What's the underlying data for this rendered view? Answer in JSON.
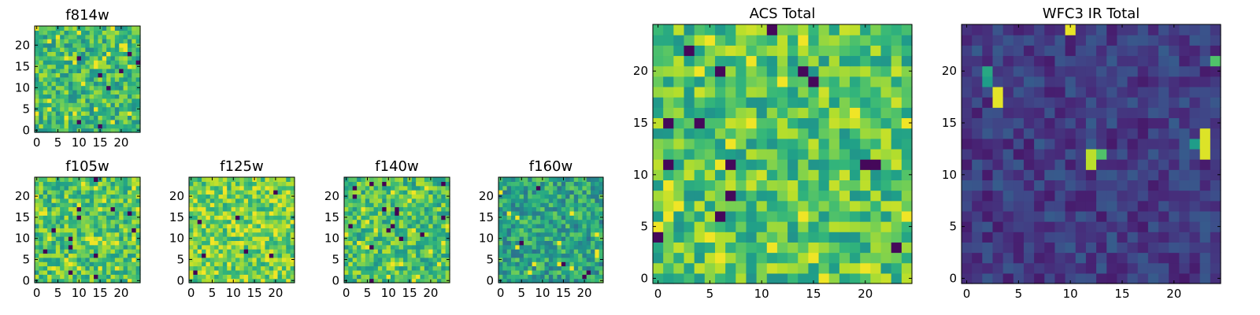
{
  "chart_data": [
    {
      "id": "f814w",
      "type": "heatmap",
      "title": "f814w",
      "xlim": [
        0,
        24
      ],
      "ylim": [
        0,
        24
      ],
      "xticks": [
        "0",
        "5",
        "10",
        "15",
        "20"
      ],
      "yticks": [
        "0",
        "5",
        "10",
        "15",
        "20"
      ],
      "colormap": "viridis",
      "mean_level": 0.68,
      "hot_pixel_level": 0.02,
      "cold_pixel_level": 0.0,
      "seed": 11
    },
    {
      "id": "f105w",
      "type": "heatmap",
      "title": "f105w",
      "xlim": [
        0,
        24
      ],
      "ylim": [
        0,
        24
      ],
      "xticks": [
        "0",
        "5",
        "10",
        "15",
        "20"
      ],
      "yticks": [
        "0",
        "5",
        "10",
        "15",
        "20"
      ],
      "colormap": "viridis",
      "mean_level": 0.72,
      "hot_pixel_level": 0.0,
      "cold_pixel_level": 0.0,
      "seed": 23
    },
    {
      "id": "f125w",
      "type": "heatmap",
      "title": "f125w",
      "xlim": [
        0,
        24
      ],
      "ylim": [
        0,
        24
      ],
      "xticks": [
        "0",
        "5",
        "10",
        "15",
        "20"
      ],
      "yticks": [
        "0",
        "5",
        "10",
        "15",
        "20"
      ],
      "colormap": "viridis",
      "mean_level": 0.78,
      "hot_pixel_level": 0.0,
      "cold_pixel_level": 0.0,
      "seed": 37
    },
    {
      "id": "f140w",
      "type": "heatmap",
      "title": "f140w",
      "xlim": [
        0,
        24
      ],
      "ylim": [
        0,
        24
      ],
      "xticks": [
        "0",
        "5",
        "10",
        "15",
        "20"
      ],
      "yticks": [
        "0",
        "5",
        "10",
        "15",
        "20"
      ],
      "colormap": "viridis",
      "mean_level": 0.7,
      "hot_pixel_level": 0.0,
      "cold_pixel_level": 0.0,
      "seed": 41
    },
    {
      "id": "f160w",
      "type": "heatmap",
      "title": "f160w",
      "xlim": [
        0,
        24
      ],
      "ylim": [
        0,
        24
      ],
      "xticks": [
        "0",
        "5",
        "10",
        "15",
        "20"
      ],
      "yticks": [
        "0",
        "5",
        "10",
        "15",
        "20"
      ],
      "colormap": "viridis",
      "mean_level": 0.58,
      "hot_pixel_level": 0.0,
      "cold_pixel_level": 0.0,
      "seed": 53
    },
    {
      "id": "acs_total",
      "type": "heatmap",
      "title": "ACS Total",
      "xlim": [
        0,
        24
      ],
      "ylim": [
        0,
        24
      ],
      "xticks": [
        "0",
        "5",
        "10",
        "15",
        "20"
      ],
      "yticks": [
        "0",
        "5",
        "10",
        "15",
        "20"
      ],
      "colormap": "viridis",
      "mean_level": 0.72,
      "hot_pixel_level": 0.02,
      "cold_pixel_level": 0.0,
      "seed": 67
    },
    {
      "id": "wfc3_ir_total",
      "type": "heatmap",
      "title": "WFC3 IR Total",
      "xlim": [
        0,
        24
      ],
      "ylim": [
        0,
        24
      ],
      "xticks": [
        "0",
        "5",
        "10",
        "15",
        "20"
      ],
      "yticks": [
        "0",
        "5",
        "10",
        "15",
        "20"
      ],
      "colormap": "viridis",
      "mean_level": 0.18,
      "hot_pixel_level": 0.0,
      "cold_pixel_level": 0.0,
      "seed": 79,
      "bright_cells": [
        {
          "x": 10,
          "y": 24,
          "value": 0.97
        },
        {
          "x": 3,
          "y": 18,
          "value": 0.96
        },
        {
          "x": 3,
          "y": 17,
          "value": 0.96
        },
        {
          "x": 2,
          "y": 20,
          "value": 0.6
        },
        {
          "x": 2,
          "y": 19,
          "value": 0.55
        },
        {
          "x": 24,
          "y": 21,
          "value": 0.72
        },
        {
          "x": 23,
          "y": 14,
          "value": 0.95
        },
        {
          "x": 23,
          "y": 13,
          "value": 0.95
        },
        {
          "x": 23,
          "y": 12,
          "value": 0.95
        },
        {
          "x": 22,
          "y": 13,
          "value": 0.55
        },
        {
          "x": 12,
          "y": 12,
          "value": 0.9
        },
        {
          "x": 12,
          "y": 11,
          "value": 0.9
        },
        {
          "x": 13,
          "y": 12,
          "value": 0.72
        }
      ]
    }
  ]
}
